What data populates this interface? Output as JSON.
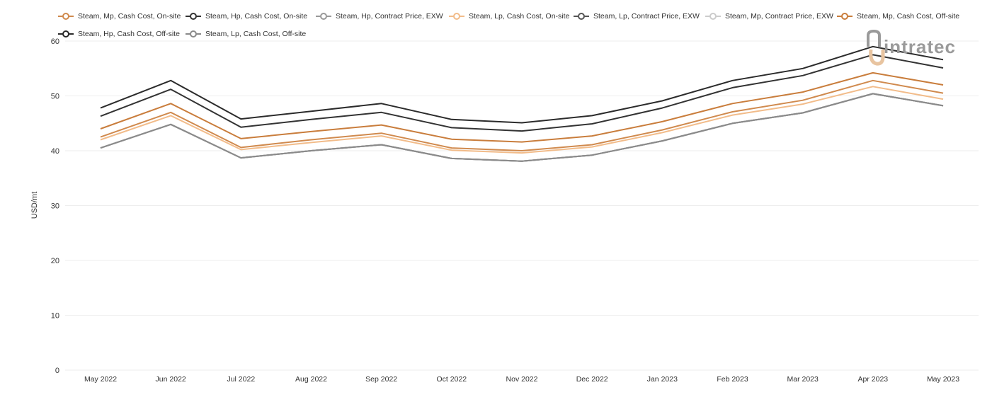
{
  "logo": {
    "text": "intratec",
    "colors": {
      "text": "#9a9a9a",
      "accent": "#e8c4a0"
    }
  },
  "chart_data": {
    "type": "line",
    "title": "",
    "xlabel": "",
    "ylabel": "USD/mt",
    "ylim": [
      0,
      60
    ],
    "yticks": [
      0,
      10,
      20,
      30,
      40,
      50,
      60
    ],
    "grid": true,
    "legend_position": "top",
    "categories": [
      "May 2022",
      "Jun 2022",
      "Jul 2022",
      "Aug 2022",
      "Sep 2022",
      "Oct 2022",
      "Nov 2022",
      "Dec 2022",
      "Jan 2023",
      "Feb 2023",
      "Mar 2023",
      "Apr 2023",
      "May 2023"
    ],
    "series": [
      {
        "name": "Steam, Mp, Cash Cost, On-site",
        "color": "#d08a4e",
        "values": [
          42.5,
          47.0,
          40.6,
          42.0,
          43.2,
          40.5,
          40.0,
          41.1,
          43.8,
          47.1,
          49.2,
          52.8,
          50.5
        ]
      },
      {
        "name": "Steam, Hp, Cash Cost, On-site",
        "color": "#333333",
        "values": [
          46.3,
          51.2,
          44.3,
          45.7,
          47.0,
          44.2,
          43.6,
          44.9,
          47.8,
          51.5,
          53.7,
          57.5,
          55.1
        ]
      },
      {
        "name": "Steam, Hp, Contract Price, EXW",
        "color": "#999999",
        "values": [
          40.5,
          44.8,
          38.7,
          40.0,
          41.1,
          38.6,
          38.1,
          39.2,
          41.8,
          45.0,
          46.9,
          50.4,
          48.2
        ]
      },
      {
        "name": "Steam, Lp, Cash Cost, On-site",
        "color": "#f2bc8a",
        "values": [
          42.0,
          46.4,
          40.2,
          41.5,
          42.7,
          40.1,
          39.6,
          40.7,
          43.3,
          46.5,
          48.5,
          51.7,
          49.4
        ]
      },
      {
        "name": "Steam, Lp, Contract Price, EXW",
        "color": "#555555",
        "values": [
          40.5,
          44.8,
          38.7,
          40.0,
          41.1,
          38.6,
          38.1,
          39.2,
          41.8,
          45.0,
          46.9,
          50.4,
          48.2
        ]
      },
      {
        "name": "Steam, Mp, Contract Price, EXW",
        "color": "#cccccc",
        "values": [
          40.5,
          44.8,
          38.7,
          40.0,
          41.1,
          38.6,
          38.1,
          39.2,
          41.8,
          45.0,
          46.9,
          50.4,
          48.2
        ]
      },
      {
        "name": "Steam, Mp, Cash Cost, Off-site",
        "color": "#c97d3c",
        "values": [
          44.0,
          48.6,
          42.2,
          43.5,
          44.7,
          42.1,
          41.6,
          42.7,
          45.3,
          48.6,
          50.7,
          54.2,
          52.0
        ]
      },
      {
        "name": "Steam, Hp, Cash Cost, Off-site",
        "color": "#2b2b2b",
        "values": [
          47.8,
          52.8,
          45.8,
          47.2,
          48.6,
          45.7,
          45.1,
          46.4,
          49.1,
          52.8,
          55.0,
          59.0,
          56.6
        ]
      },
      {
        "name": "Steam, Lp, Cash Cost, Off-site",
        "color": "#8a8a8a",
        "values": [
          40.5,
          44.8,
          38.7,
          40.0,
          41.1,
          38.6,
          38.1,
          39.2,
          41.8,
          45.0,
          46.9,
          50.4,
          48.2
        ]
      }
    ]
  }
}
